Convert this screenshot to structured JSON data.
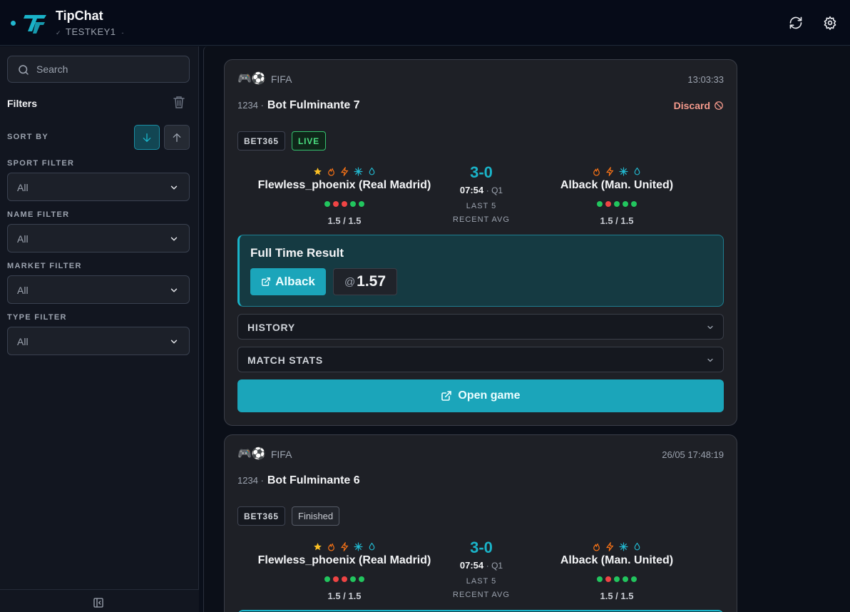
{
  "app": {
    "title": "TipChat",
    "subtitle": "TESTKEY1",
    "status_color": "#22b8cf",
    "accent_color": "#1ab3c8"
  },
  "header": {
    "refresh_icon": "refresh-icon",
    "settings_icon": "gear-icon"
  },
  "sidebar": {
    "search_placeholder": "Search",
    "filters_title": "Filters",
    "sort_by_label": "SORT BY",
    "sort_direction_active": "descending",
    "filters": [
      {
        "label": "SPORT FILTER",
        "value": "All"
      },
      {
        "label": "NAME FILTER",
        "value": "All"
      },
      {
        "label": "MARKET FILTER",
        "value": "All"
      },
      {
        "label": "TYPE FILTER",
        "value": "All"
      }
    ]
  },
  "cards": [
    {
      "sport_emoji": "🎮⚽",
      "sport": "FIFA",
      "time": "13:03:33",
      "id": "1234 ·",
      "name": "Bot Fulminante 7",
      "discard_label": "Discard",
      "bookmaker": "BET365",
      "status": "LIVE",
      "home": {
        "name": "Flewless_phoenix (Real Madrid)",
        "icons": [
          "star-icon",
          "flame-icon",
          "bolt-icon",
          "snowflake-icon",
          "water-drop-icon"
        ],
        "form": [
          "W",
          "L",
          "L",
          "W",
          "W"
        ],
        "avg": "1.5 / 1.5"
      },
      "away": {
        "name": "Alback (Man. United)",
        "icons": [
          "flame-icon",
          "bolt-icon",
          "snowflake-icon",
          "water-drop-icon"
        ],
        "form": [
          "W",
          "L",
          "W",
          "W",
          "W"
        ],
        "avg": "1.5 / 1.5"
      },
      "score": "3-0",
      "clock": "07:54",
      "period": "· Q1",
      "last5_label": "LAST 5",
      "recent_avg_label": "RECENT AVG",
      "market": "Full Time Result",
      "pick": "Alback",
      "odds_prefix": "@",
      "odds": "1.57",
      "history_label": "HISTORY",
      "match_stats_label": "MATCH STATS",
      "open_game_label": "Open game"
    },
    {
      "sport_emoji": "🎮⚽",
      "sport": "FIFA",
      "time": "26/05 17:48:19",
      "id": "1234 ·",
      "name": "Bot Fulminante 6",
      "bookmaker": "BET365",
      "status": "Finished",
      "home": {
        "name": "Flewless_phoenix (Real Madrid)",
        "form": [
          "W",
          "L",
          "L",
          "W",
          "W"
        ],
        "avg": "1.5 / 1.5"
      },
      "away": {
        "name": "Alback (Man. United)",
        "form": [
          "W",
          "L",
          "W",
          "W",
          "W"
        ],
        "avg": "1.5 / 1.5"
      },
      "score": "3-0",
      "clock": "07:54",
      "period": "· Q1",
      "last5_label": "LAST 5",
      "recent_avg_label": "RECENT AVG"
    }
  ]
}
